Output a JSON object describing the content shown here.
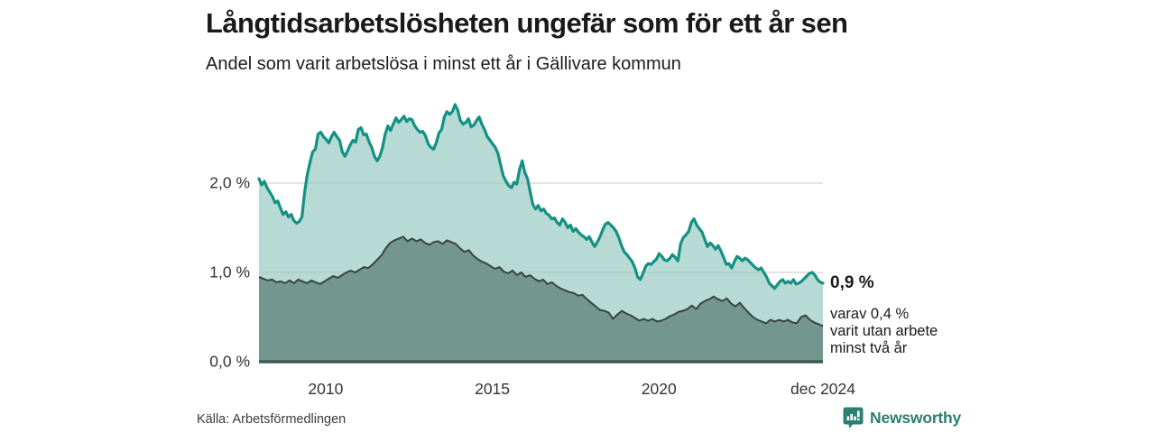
{
  "header": {
    "title": "Långtidsarbetslösheten ungefär som för ett år sen",
    "subtitle": "Andel som varit arbetslösa i minst ett år i Gällivare kommun"
  },
  "annotation": {
    "value": "0,9 %",
    "line1": "varav 0,4 %",
    "line2": "varit utan arbete",
    "line3": "minst två år"
  },
  "source": {
    "label": "Källa: Arbetsförmedlingen"
  },
  "branding": {
    "name": "Newsworthy",
    "icon": "bar-chart-speech-bubble-icon",
    "color": "#2c7f72"
  },
  "colors": {
    "line_total": "#149183",
    "fill_total": "#b7dbd4",
    "line_two_years": "#37453f",
    "fill_two_years": "#7fa69d",
    "axis_baseline": "#3d5c55",
    "gridline": "#dcdcdc",
    "text": "#1a1a1a"
  },
  "chart_data": {
    "type": "area",
    "title": "Långtidsarbetslösheten ungefär som för ett år sen",
    "subtitle": "Andel som varit arbetslösa i minst ett år i Gällivare kommun",
    "unit": "%",
    "grid": true,
    "x_range_years": [
      2008.0,
      2024.92
    ],
    "x_ticks": [
      {
        "label": "2010",
        "year": 2010
      },
      {
        "label": "2015",
        "year": 2015
      },
      {
        "label": "2020",
        "year": 2020
      },
      {
        "label": "dec 2024",
        "year": 2024.92
      }
    ],
    "y_ticks": [
      {
        "label": "0,0 %",
        "value": 0
      },
      {
        "label": "1,0 %",
        "value": 1
      },
      {
        "label": "2,0 %",
        "value": 2
      }
    ],
    "ylim": [
      0,
      3.0
    ],
    "series": [
      {
        "name": "Arbetslösa minst ett år",
        "end_label": "0,9 %",
        "end_value": 0.9,
        "values": [
          2.05,
          1.98,
          2.02,
          1.95,
          1.9,
          1.85,
          1.78,
          1.8,
          1.72,
          1.65,
          1.68,
          1.62,
          1.65,
          1.58,
          1.55,
          1.57,
          1.62,
          1.9,
          2.1,
          2.23,
          2.35,
          2.38,
          2.55,
          2.57,
          2.52,
          2.49,
          2.45,
          2.52,
          2.57,
          2.52,
          2.48,
          2.35,
          2.3,
          2.36,
          2.43,
          2.48,
          2.46,
          2.6,
          2.62,
          2.54,
          2.55,
          2.46,
          2.4,
          2.3,
          2.25,
          2.3,
          2.4,
          2.55,
          2.64,
          2.59,
          2.66,
          2.73,
          2.68,
          2.71,
          2.75,
          2.69,
          2.72,
          2.71,
          2.64,
          2.6,
          2.57,
          2.58,
          2.53,
          2.44,
          2.4,
          2.38,
          2.45,
          2.56,
          2.6,
          2.74,
          2.8,
          2.77,
          2.8,
          2.88,
          2.82,
          2.7,
          2.66,
          2.68,
          2.72,
          2.63,
          2.65,
          2.7,
          2.74,
          2.66,
          2.6,
          2.52,
          2.48,
          2.44,
          2.4,
          2.33,
          2.2,
          2.08,
          2.02,
          1.97,
          1.95,
          2.01,
          1.99,
          2.15,
          2.25,
          2.12,
          2.05,
          1.9,
          1.76,
          1.71,
          1.75,
          1.69,
          1.71,
          1.66,
          1.64,
          1.6,
          1.61,
          1.56,
          1.53,
          1.6,
          1.56,
          1.5,
          1.53,
          1.46,
          1.49,
          1.45,
          1.42,
          1.4,
          1.37,
          1.4,
          1.34,
          1.29,
          1.34,
          1.4,
          1.48,
          1.54,
          1.56,
          1.53,
          1.5,
          1.46,
          1.39,
          1.3,
          1.23,
          1.2,
          1.16,
          1.12,
          1.05,
          0.95,
          0.92,
          0.99,
          1.07,
          1.1,
          1.09,
          1.12,
          1.15,
          1.21,
          1.18,
          1.14,
          1.13,
          1.16,
          1.2,
          1.17,
          1.13,
          1.32,
          1.39,
          1.42,
          1.46,
          1.56,
          1.6,
          1.53,
          1.49,
          1.45,
          1.37,
          1.29,
          1.33,
          1.3,
          1.26,
          1.3,
          1.24,
          1.17,
          1.09,
          1.1,
          1.05,
          1.12,
          1.18,
          1.16,
          1.13,
          1.16,
          1.14,
          1.11,
          1.08,
          1.05,
          1.03,
          1.05,
          1.0,
          0.95,
          0.88,
          0.85,
          0.82,
          0.86,
          0.9,
          0.92,
          0.88,
          0.9,
          0.88,
          0.92,
          0.87,
          0.88,
          0.9,
          0.93,
          0.96,
          0.99,
          1.0,
          0.97,
          0.92,
          0.89,
          0.88
        ]
      },
      {
        "name": "Utan arbete minst två år",
        "end_label": "0,4 %",
        "end_value": 0.4,
        "values": [
          0.95,
          0.93,
          0.91,
          0.92,
          0.89,
          0.9,
          0.88,
          0.91,
          0.88,
          0.92,
          0.9,
          0.88,
          0.91,
          0.89,
          0.87,
          0.9,
          0.93,
          0.96,
          0.94,
          0.97,
          1.0,
          1.02,
          1.0,
          1.03,
          1.06,
          1.05,
          1.09,
          1.14,
          1.19,
          1.27,
          1.33,
          1.36,
          1.38,
          1.4,
          1.35,
          1.38,
          1.35,
          1.37,
          1.33,
          1.31,
          1.34,
          1.35,
          1.32,
          1.36,
          1.34,
          1.32,
          1.27,
          1.23,
          1.25,
          1.19,
          1.15,
          1.12,
          1.1,
          1.07,
          1.04,
          1.06,
          1.01,
          0.99,
          1.02,
          0.97,
          1.0,
          0.95,
          0.97,
          0.93,
          0.9,
          0.92,
          0.87,
          0.89,
          0.85,
          0.82,
          0.8,
          0.78,
          0.77,
          0.74,
          0.75,
          0.7,
          0.66,
          0.62,
          0.58,
          0.57,
          0.55,
          0.48,
          0.53,
          0.57,
          0.54,
          0.52,
          0.49,
          0.46,
          0.48,
          0.46,
          0.48,
          0.45,
          0.46,
          0.48,
          0.51,
          0.53,
          0.56,
          0.57,
          0.59,
          0.63,
          0.59,
          0.65,
          0.68,
          0.7,
          0.73,
          0.7,
          0.68,
          0.71,
          0.65,
          0.62,
          0.66,
          0.6,
          0.55,
          0.5,
          0.47,
          0.45,
          0.43,
          0.47,
          0.45,
          0.47,
          0.45,
          0.47,
          0.44,
          0.43,
          0.5,
          0.52,
          0.47,
          0.44,
          0.42,
          0.4
        ]
      }
    ]
  }
}
